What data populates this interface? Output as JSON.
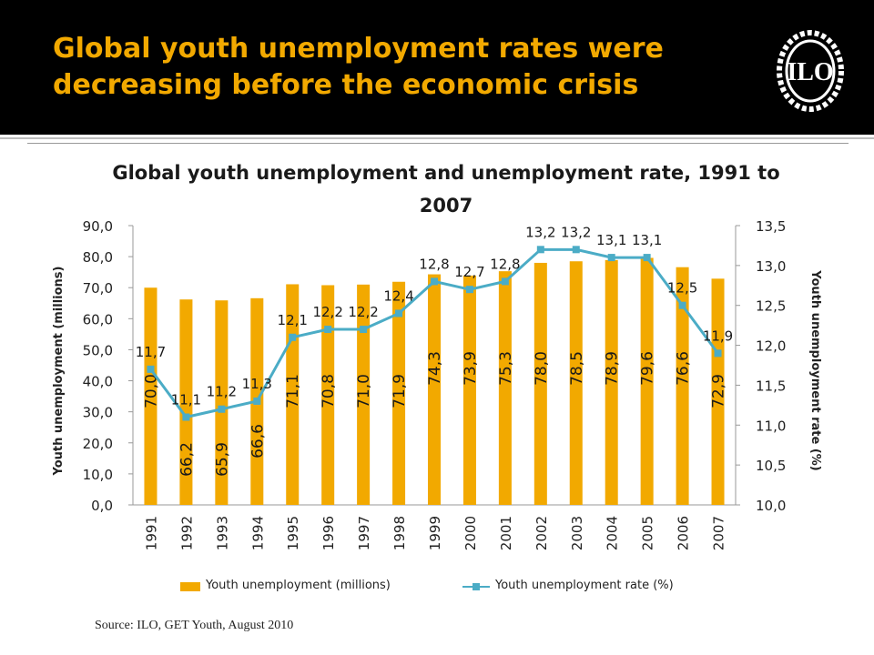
{
  "slide": {
    "title": "Global youth unemployment rates were decreasing before the economic crisis",
    "logo_text": "ILO",
    "source": "Source: ILO, GET Youth, August 2010"
  },
  "colors": {
    "bar": "#f2a900",
    "line": "#4bacc6",
    "title": "#f2a900",
    "header_bg": "#000000"
  },
  "chart_data": {
    "type": "bar",
    "title": "Global youth unemployment and unemployment rate, 1991 to 2007",
    "categories": [
      "1991",
      "1992",
      "1993",
      "1994",
      "1995",
      "1996",
      "1997",
      "1998",
      "1999",
      "2000",
      "2001",
      "2002",
      "2003",
      "2004",
      "2005",
      "2006",
      "2007"
    ],
    "series": [
      {
        "name": "Youth unemployment (millions)",
        "type": "bar",
        "axis": "left",
        "values": [
          70.0,
          66.2,
          65.9,
          66.6,
          71.1,
          70.8,
          71.0,
          71.9,
          74.3,
          73.9,
          75.3,
          78.0,
          78.5,
          78.9,
          79.6,
          76.6,
          72.9
        ],
        "labels": [
          "70,0",
          "66,2",
          "65,9",
          "66,6",
          "71,1",
          "70,8",
          "71,0",
          "71,9",
          "74,3",
          "73,9",
          "75,3",
          "78,0",
          "78,5",
          "78,9",
          "79,6",
          "76,6",
          "72,9"
        ]
      },
      {
        "name": "Youth unemployment rate (%)",
        "type": "line",
        "axis": "right",
        "values": [
          11.7,
          11.1,
          11.2,
          11.3,
          12.1,
          12.2,
          12.2,
          12.4,
          12.8,
          12.7,
          12.8,
          13.2,
          13.2,
          13.1,
          13.1,
          12.5,
          11.9
        ],
        "labels": [
          "11,7",
          "11,1",
          "11,2",
          "11,3",
          "12,1",
          "12,2",
          "12,2",
          "12,4",
          "12,8",
          "12,7",
          "12,8",
          "13,2",
          "13,2",
          "13,1",
          "13,1",
          "12,5",
          "11,9"
        ]
      }
    ],
    "ylabel": "Youth unemployment (millions)",
    "y2label": "Youth unemployment rate (%)",
    "ylim": [
      0,
      90
    ],
    "y2lim": [
      10,
      13.5
    ],
    "yticks": [
      "0,0",
      "10,0",
      "20,0",
      "30,0",
      "40,0",
      "50,0",
      "60,0",
      "70,0",
      "80,0",
      "90,0"
    ],
    "y2ticks": [
      "10,0",
      "10,5",
      "11,0",
      "11,5",
      "12,0",
      "12,5",
      "13,0",
      "13,5"
    ],
    "legend": "bottom",
    "grid": false
  }
}
